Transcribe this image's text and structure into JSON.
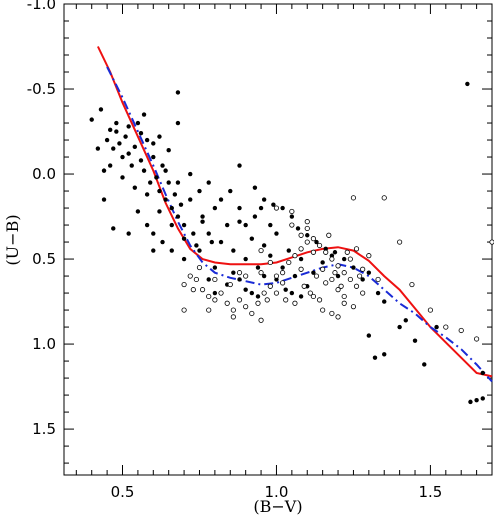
{
  "chart_data": {
    "type": "scatter",
    "title": "",
    "xlabel": "(B−V)",
    "ylabel": "(U−B)",
    "xlim": [
      0.31,
      1.7
    ],
    "ylim": [
      1.77,
      -1.0
    ],
    "y_inverted": true,
    "grid": false,
    "x_ticks": [
      0.5,
      1.0,
      1.5
    ],
    "x_tick_labels": [
      "0.5",
      "1.0",
      "1.5"
    ],
    "y_ticks": [
      -1.0,
      -0.5,
      0.0,
      0.5,
      1.0,
      1.5
    ],
    "y_tick_labels": [
      "-1.0",
      "-0.5",
      "0.0",
      "0.5",
      "1.0",
      "1.5"
    ],
    "series": [
      {
        "kind": "line",
        "style": "solid",
        "color": "#ee1111",
        "points": [
          [
            0.42,
            -0.75
          ],
          [
            0.46,
            -0.6
          ],
          [
            0.5,
            -0.42
          ],
          [
            0.55,
            -0.22
          ],
          [
            0.6,
            -0.02
          ],
          [
            0.64,
            0.17
          ],
          [
            0.68,
            0.32
          ],
          [
            0.72,
            0.44
          ],
          [
            0.76,
            0.5
          ],
          [
            0.8,
            0.52
          ],
          [
            0.85,
            0.53
          ],
          [
            0.9,
            0.53
          ],
          [
            0.95,
            0.53
          ],
          [
            1.0,
            0.52
          ],
          [
            1.05,
            0.49
          ],
          [
            1.1,
            0.46
          ],
          [
            1.15,
            0.44
          ],
          [
            1.2,
            0.43
          ],
          [
            1.25,
            0.45
          ],
          [
            1.3,
            0.51
          ],
          [
            1.35,
            0.6
          ],
          [
            1.4,
            0.68
          ],
          [
            1.45,
            0.79
          ],
          [
            1.5,
            0.9
          ],
          [
            1.55,
            0.99
          ],
          [
            1.6,
            1.08
          ],
          [
            1.65,
            1.17
          ],
          [
            1.7,
            1.19
          ]
        ]
      },
      {
        "kind": "line",
        "style": "dashed",
        "color": "#1a2bd6",
        "points": [
          [
            0.45,
            -0.63
          ],
          [
            0.5,
            -0.45
          ],
          [
            0.55,
            -0.25
          ],
          [
            0.6,
            -0.05
          ],
          [
            0.64,
            0.12
          ],
          [
            0.68,
            0.28
          ],
          [
            0.72,
            0.42
          ],
          [
            0.76,
            0.52
          ],
          [
            0.8,
            0.58
          ],
          [
            0.85,
            0.61
          ],
          [
            0.9,
            0.63
          ],
          [
            0.95,
            0.65
          ],
          [
            1.0,
            0.64
          ],
          [
            1.05,
            0.61
          ],
          [
            1.1,
            0.58
          ],
          [
            1.15,
            0.55
          ],
          [
            1.2,
            0.53
          ],
          [
            1.25,
            0.55
          ],
          [
            1.3,
            0.6
          ],
          [
            1.35,
            0.68
          ],
          [
            1.4,
            0.76
          ],
          [
            1.45,
            0.82
          ],
          [
            1.5,
            0.9
          ],
          [
            1.55,
            0.96
          ],
          [
            1.6,
            1.03
          ],
          [
            1.65,
            1.12
          ],
          [
            1.7,
            1.22
          ]
        ]
      },
      {
        "kind": "scatter",
        "marker": "filled",
        "color": "#000000",
        "points": [
          [
            0.4,
            -0.32
          ],
          [
            0.43,
            -0.38
          ],
          [
            0.45,
            -0.2
          ],
          [
            0.46,
            -0.26
          ],
          [
            0.47,
            -0.15
          ],
          [
            0.48,
            -0.25
          ],
          [
            0.49,
            -0.18
          ],
          [
            0.5,
            -0.1
          ],
          [
            0.51,
            -0.22
          ],
          [
            0.52,
            -0.12
          ],
          [
            0.53,
            -0.05
          ],
          [
            0.54,
            -0.16
          ],
          [
            0.55,
            -0.3
          ],
          [
            0.56,
            -0.08
          ],
          [
            0.57,
            -0.02
          ],
          [
            0.58,
            -0.2
          ],
          [
            0.59,
            0.05
          ],
          [
            0.6,
            -0.1
          ],
          [
            0.61,
            0.02
          ],
          [
            0.62,
            0.1
          ],
          [
            0.63,
            -0.05
          ],
          [
            0.64,
            0.15
          ],
          [
            0.65,
            0.05
          ],
          [
            0.66,
            0.2
          ],
          [
            0.67,
            0.12
          ],
          [
            0.68,
            0.25
          ],
          [
            0.69,
            0.18
          ],
          [
            0.7,
            0.3
          ],
          [
            0.46,
            -0.05
          ],
          [
            0.48,
            -0.3
          ],
          [
            0.5,
            0.02
          ],
          [
            0.52,
            -0.28
          ],
          [
            0.54,
            0.08
          ],
          [
            0.56,
            -0.24
          ],
          [
            0.58,
            0.12
          ],
          [
            0.6,
            -0.18
          ],
          [
            0.62,
            0.22
          ],
          [
            0.64,
            -0.02
          ],
          [
            0.66,
            0.3
          ],
          [
            0.68,
            0.05
          ],
          [
            0.7,
            0.38
          ],
          [
            0.72,
            0.15
          ],
          [
            0.74,
            0.42
          ],
          [
            0.76,
            0.25
          ],
          [
            0.78,
            0.35
          ],
          [
            0.8,
            0.2
          ],
          [
            0.82,
            0.4
          ],
          [
            0.84,
            0.3
          ],
          [
            0.86,
            0.45
          ],
          [
            0.88,
            0.28
          ],
          [
            0.9,
            0.5
          ],
          [
            0.92,
            0.38
          ],
          [
            0.94,
            0.55
          ],
          [
            0.96,
            0.42
          ],
          [
            0.98,
            0.48
          ],
          [
            1.0,
            0.35
          ],
          [
            1.02,
            0.55
          ],
          [
            1.04,
            0.45
          ],
          [
            1.06,
            0.6
          ],
          [
            1.08,
            0.5
          ],
          [
            0.72,
            0.0
          ],
          [
            0.75,
            0.1
          ],
          [
            0.78,
            0.05
          ],
          [
            0.8,
            0.55
          ],
          [
            0.82,
            0.15
          ],
          [
            0.85,
            0.1
          ],
          [
            0.88,
            0.2
          ],
          [
            0.9,
            0.3
          ],
          [
            0.93,
            0.25
          ],
          [
            0.95,
            0.2
          ],
          [
            0.98,
            0.3
          ],
          [
            1.0,
            0.62
          ],
          [
            1.03,
            0.68
          ],
          [
            1.05,
            0.7
          ],
          [
            1.08,
            0.72
          ],
          [
            1.1,
            0.66
          ],
          [
            1.12,
            0.58
          ],
          [
            1.15,
            0.52
          ],
          [
            1.18,
            0.48
          ],
          [
            1.2,
            0.6
          ],
          [
            0.75,
            0.45
          ],
          [
            0.78,
            0.62
          ],
          [
            0.8,
            0.7
          ],
          [
            0.84,
            0.65
          ],
          [
            0.86,
            0.58
          ],
          [
            0.88,
            0.62
          ],
          [
            0.9,
            0.68
          ],
          [
            0.92,
            0.7
          ],
          [
            0.94,
            0.72
          ],
          [
            0.96,
            0.6
          ],
          [
            0.62,
            -0.22
          ],
          [
            0.65,
            -0.14
          ],
          [
            0.68,
            -0.3
          ],
          [
            0.57,
            -0.35
          ],
          [
            0.44,
            -0.02
          ],
          [
            0.42,
            -0.15
          ],
          [
            0.55,
            0.22
          ],
          [
            0.58,
            0.3
          ],
          [
            0.6,
            0.35
          ],
          [
            0.63,
            0.4
          ],
          [
            0.66,
            0.45
          ],
          [
            0.7,
            0.5
          ],
          [
            0.73,
            0.35
          ],
          [
            0.76,
            0.28
          ],
          [
            0.79,
            0.4
          ],
          [
            0.44,
            0.15
          ],
          [
            0.47,
            0.32
          ],
          [
            0.52,
            0.35
          ],
          [
            0.6,
            0.45
          ],
          [
            0.68,
            -0.48
          ],
          [
            0.88,
            -0.05
          ],
          [
            0.93,
            0.08
          ],
          [
            0.96,
            0.15
          ],
          [
            0.99,
            0.18
          ],
          [
            1.02,
            0.2
          ],
          [
            1.05,
            0.25
          ],
          [
            1.07,
            0.32
          ],
          [
            1.1,
            0.36
          ],
          [
            1.13,
            0.4
          ],
          [
            1.16,
            0.44
          ],
          [
            1.19,
            0.46
          ],
          [
            1.22,
            0.5
          ],
          [
            1.25,
            0.55
          ],
          [
            1.28,
            0.62
          ],
          [
            1.3,
            0.58
          ],
          [
            1.33,
            0.7
          ],
          [
            1.35,
            0.75
          ],
          [
            1.3,
            0.95
          ],
          [
            1.32,
            1.08
          ],
          [
            1.35,
            1.06
          ],
          [
            1.4,
            0.9
          ],
          [
            1.42,
            0.86
          ],
          [
            1.45,
            0.98
          ],
          [
            1.48,
            1.12
          ],
          [
            1.52,
            0.9
          ],
          [
            1.63,
            1.34
          ],
          [
            1.65,
            1.33
          ],
          [
            1.67,
            1.32
          ],
          [
            1.67,
            1.17
          ],
          [
            1.62,
            -0.53
          ]
        ]
      },
      {
        "kind": "scatter",
        "marker": "open",
        "color": "#000000",
        "points": [
          [
            0.7,
            0.65
          ],
          [
            0.72,
            0.6
          ],
          [
            0.74,
            0.62
          ],
          [
            0.76,
            0.68
          ],
          [
            0.78,
            0.72
          ],
          [
            0.8,
            0.74
          ],
          [
            0.82,
            0.7
          ],
          [
            0.84,
            0.76
          ],
          [
            0.86,
            0.8
          ],
          [
            0.88,
            0.74
          ],
          [
            0.9,
            0.78
          ],
          [
            0.92,
            0.82
          ],
          [
            0.94,
            0.76
          ],
          [
            0.96,
            0.7
          ],
          [
            0.98,
            0.66
          ],
          [
            1.0,
            0.6
          ],
          [
            1.02,
            0.58
          ],
          [
            1.04,
            0.52
          ],
          [
            1.06,
            0.48
          ],
          [
            1.08,
            0.44
          ],
          [
            1.1,
            0.4
          ],
          [
            1.12,
            0.38
          ],
          [
            1.14,
            0.42
          ],
          [
            1.16,
            0.46
          ],
          [
            1.18,
            0.5
          ],
          [
            1.2,
            0.54
          ],
          [
            1.22,
            0.58
          ],
          [
            1.24,
            0.62
          ],
          [
            1.26,
            0.66
          ],
          [
            1.28,
            0.7
          ],
          [
            1.05,
            0.3
          ],
          [
            1.08,
            0.36
          ],
          [
            1.1,
            0.32
          ],
          [
            1.12,
            0.46
          ],
          [
            1.15,
            0.56
          ],
          [
            1.18,
            0.62
          ],
          [
            1.2,
            0.68
          ],
          [
            1.22,
            0.72
          ],
          [
            1.24,
            0.5
          ],
          [
            1.26,
            0.44
          ],
          [
            0.75,
            0.55
          ],
          [
            0.8,
            0.62
          ],
          [
            0.85,
            0.65
          ],
          [
            0.9,
            0.6
          ],
          [
            0.95,
            0.58
          ],
          [
            1.0,
            0.7
          ],
          [
            1.03,
            0.74
          ],
          [
            1.06,
            0.76
          ],
          [
            1.09,
            0.66
          ],
          [
            1.12,
            0.72
          ],
          [
            0.7,
            0.8
          ],
          [
            0.78,
            0.8
          ],
          [
            0.86,
            0.84
          ],
          [
            0.95,
            0.86
          ],
          [
            1.0,
            0.2
          ],
          [
            1.05,
            0.22
          ],
          [
            1.1,
            0.28
          ],
          [
            1.15,
            0.8
          ],
          [
            1.18,
            0.82
          ],
          [
            1.2,
            0.84
          ],
          [
            1.22,
            0.76
          ],
          [
            1.25,
            0.78
          ],
          [
            1.28,
            0.56
          ],
          [
            1.3,
            0.48
          ],
          [
            1.33,
            0.62
          ],
          [
            0.73,
            0.68
          ],
          [
            0.88,
            0.58
          ],
          [
            0.97,
            0.74
          ],
          [
            1.13,
            0.6
          ],
          [
            1.17,
            0.36
          ],
          [
            1.25,
            0.14
          ],
          [
            1.35,
            0.14
          ],
          [
            1.4,
            0.4
          ],
          [
            1.44,
            0.65
          ],
          [
            1.5,
            0.8
          ],
          [
            1.55,
            0.9
          ],
          [
            1.6,
            0.92
          ],
          [
            1.65,
            0.97
          ],
          [
            1.7,
            0.4
          ],
          [
            0.95,
            0.45
          ],
          [
            0.98,
            0.52
          ],
          [
            1.02,
            0.64
          ],
          [
            1.08,
            0.56
          ],
          [
            1.11,
            0.7
          ],
          [
            1.14,
            0.74
          ],
          [
            1.16,
            0.64
          ],
          [
            1.19,
            0.58
          ],
          [
            1.21,
            0.66
          ],
          [
            1.23,
            0.46
          ],
          [
            1.27,
            0.6
          ]
        ]
      }
    ]
  }
}
